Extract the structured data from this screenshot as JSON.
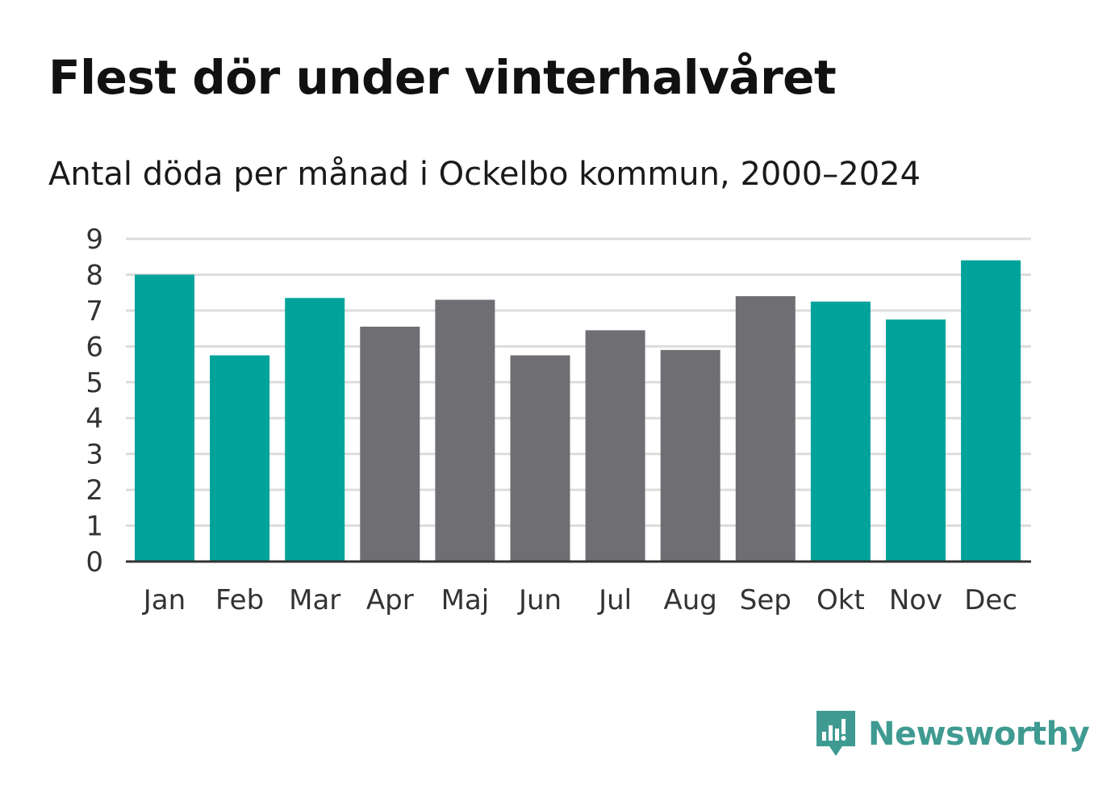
{
  "title": "Flest dör under vinterhalvåret",
  "subtitle": "Antal döda per månad i Ockelbo kommun, 2000–2024",
  "brand": {
    "name": "Newsworthy",
    "icon": "newsworthy-logo-icon",
    "color": "#3f9b92"
  },
  "colors": {
    "winter": "#00a39a",
    "summer": "#6f6e73",
    "grid": "#dcdcdc",
    "axis": "#333333"
  },
  "chart_data": {
    "type": "bar",
    "title": "Flest dör under vinterhalvåret",
    "subtitle": "Antal döda per månad i Ockelbo kommun, 2000–2024",
    "xlabel": "",
    "ylabel": "",
    "ylim": [
      0,
      9
    ],
    "yticks": [
      0,
      1,
      2,
      3,
      4,
      5,
      6,
      7,
      8,
      9
    ],
    "grid": true,
    "categories": [
      "Jan",
      "Feb",
      "Mar",
      "Apr",
      "Maj",
      "Jun",
      "Jul",
      "Aug",
      "Sep",
      "Okt",
      "Nov",
      "Dec"
    ],
    "values": [
      8.0,
      5.75,
      7.35,
      6.55,
      7.3,
      5.75,
      6.45,
      5.9,
      7.4,
      7.25,
      6.75,
      8.4
    ],
    "bar_groups": [
      "winter",
      "winter",
      "winter",
      "summer",
      "summer",
      "summer",
      "summer",
      "summer",
      "summer",
      "winter",
      "winter",
      "winter"
    ]
  }
}
